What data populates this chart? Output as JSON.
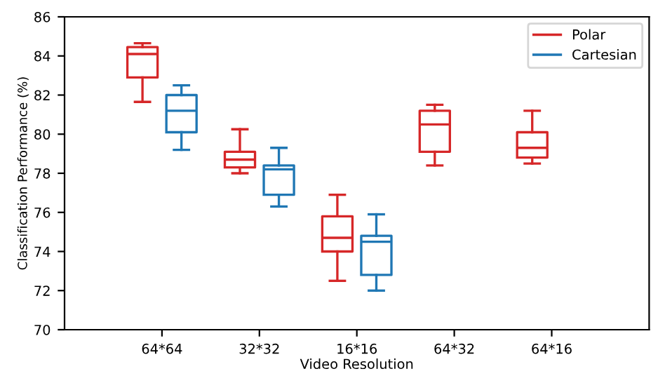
{
  "chart_data": {
    "type": "box",
    "xlabel": "Video Resolution",
    "ylabel": "Classification Performance (%)",
    "categories": [
      "64*64",
      "32*32",
      "16*16",
      "64*32",
      "64*16"
    ],
    "ylim": [
      70,
      86
    ],
    "yticks": [
      70,
      72,
      74,
      76,
      78,
      80,
      82,
      84,
      86
    ],
    "legend": "top right",
    "grid": false,
    "series": [
      {
        "name": "Polar",
        "color": "#d62728",
        "boxes": [
          {
            "low": 81.65,
            "q1": 82.9,
            "median": 84.1,
            "q3": 84.45,
            "high": 84.65
          },
          {
            "low": 78.0,
            "q1": 78.3,
            "median": 78.7,
            "q3": 79.1,
            "high": 80.25
          },
          {
            "low": 72.5,
            "q1": 74.0,
            "median": 74.7,
            "q3": 75.8,
            "high": 76.9
          },
          {
            "low": 78.4,
            "q1": 79.1,
            "median": 80.5,
            "q3": 81.2,
            "high": 81.5
          },
          {
            "low": 78.5,
            "q1": 78.8,
            "median": 79.3,
            "q3": 80.1,
            "high": 81.2
          }
        ]
      },
      {
        "name": "Cartesian",
        "color": "#1f77b4",
        "boxes": [
          {
            "low": 79.2,
            "q1": 80.1,
            "median": 81.2,
            "q3": 82.0,
            "high": 82.5
          },
          {
            "low": 76.3,
            "q1": 76.9,
            "median": 78.2,
            "q3": 78.4,
            "high": 79.3
          },
          {
            "low": 72.0,
            "q1": 72.8,
            "median": 74.5,
            "q3": 74.8,
            "high": 75.9
          },
          null,
          null
        ]
      }
    ]
  }
}
